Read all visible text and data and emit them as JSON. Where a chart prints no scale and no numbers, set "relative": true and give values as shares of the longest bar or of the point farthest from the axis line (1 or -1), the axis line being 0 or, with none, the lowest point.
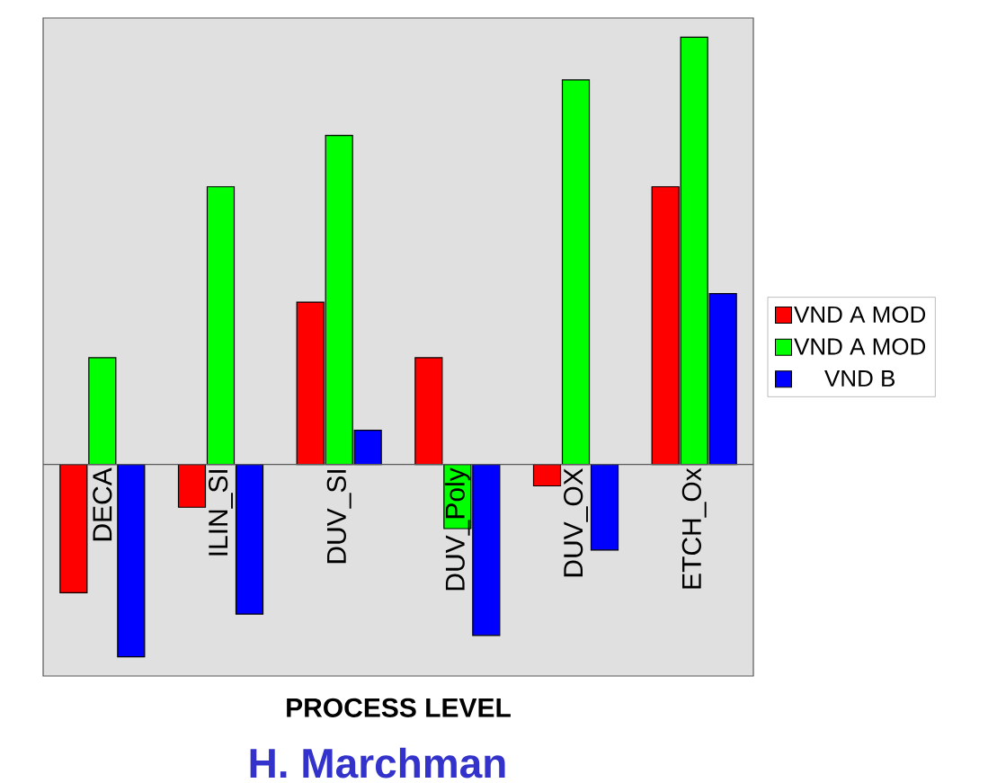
{
  "chart_data": {
    "type": "bar",
    "relative": true,
    "xlabel": "PROCESS LEVEL",
    "annotations": [
      "H. Marchman"
    ],
    "legend": "right",
    "categories": [
      "DECA",
      "ILIN_SI",
      "DUV_SI",
      "DUV_Poly",
      "DUV_OX",
      "ETCH_Ox"
    ],
    "series": [
      {
        "name": "VND A MOD",
        "color": "#ff0000",
        "values": [
          -0.3,
          -0.1,
          0.38,
          0.25,
          -0.05,
          0.65
        ]
      },
      {
        "name": "VND A MOD",
        "color": "#00ff00",
        "values": [
          0.25,
          0.65,
          0.77,
          -0.15,
          0.9,
          1.0
        ]
      },
      {
        "name": "VND B",
        "color": "#0000ff",
        "values": [
          -0.45,
          -0.35,
          0.08,
          -0.4,
          -0.2,
          0.4
        ]
      }
    ]
  }
}
